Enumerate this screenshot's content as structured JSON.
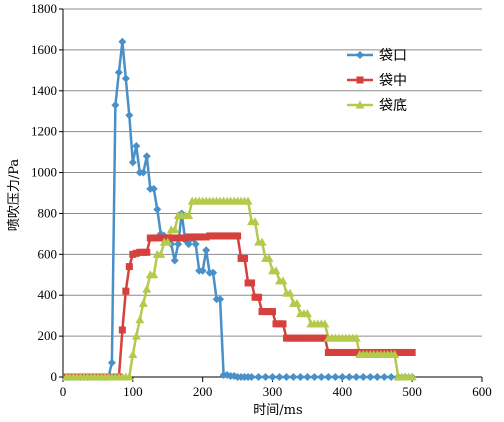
{
  "chart_data": {
    "type": "line",
    "title": "",
    "xlabel": "时间/ms",
    "ylabel": "喷吹压力/Pa",
    "xlim": [
      0,
      600
    ],
    "ylim": [
      0,
      1800
    ],
    "xticks": [
      "0",
      "100",
      "200",
      "300",
      "400",
      "500",
      "600"
    ],
    "yticks": [
      "0",
      "200",
      "400",
      "600",
      "800",
      "1000",
      "1200",
      "1400",
      "1600",
      "1800"
    ],
    "grid": "horizontal",
    "legend_position": "right",
    "series": [
      {
        "name": "袋口",
        "color": "#4a90c8",
        "marker": "diamond",
        "x": [
          5,
          10,
          15,
          20,
          25,
          30,
          35,
          40,
          45,
          50,
          55,
          60,
          65,
          70,
          75,
          80,
          85,
          90,
          95,
          100,
          105,
          110,
          115,
          120,
          125,
          130,
          135,
          140,
          145,
          150,
          155,
          160,
          165,
          170,
          175,
          180,
          185,
          190,
          195,
          200,
          205,
          210,
          215,
          220,
          225,
          230,
          235,
          240,
          245,
          250,
          255,
          260,
          265,
          270,
          280,
          290,
          300,
          310,
          320,
          330,
          340,
          350,
          360,
          370,
          380,
          390,
          400,
          410,
          420,
          430,
          440,
          450,
          460,
          470,
          480,
          490,
          500
        ],
        "y": [
          0,
          0,
          0,
          0,
          0,
          0,
          0,
          0,
          0,
          0,
          0,
          0,
          0,
          70,
          1330,
          1490,
          1640,
          1460,
          1280,
          1050,
          1130,
          1000,
          1000,
          1080,
          920,
          920,
          820,
          700,
          690,
          680,
          650,
          570,
          650,
          800,
          670,
          650,
          680,
          650,
          520,
          520,
          620,
          510,
          510,
          380,
          380,
          10,
          10,
          5,
          5,
          0,
          0,
          0,
          0,
          0,
          0,
          0,
          0,
          0,
          0,
          0,
          0,
          0,
          0,
          0,
          0,
          0,
          0,
          0,
          0,
          0,
          0,
          0,
          0,
          0,
          0,
          0,
          0
        ]
      },
      {
        "name": "袋中",
        "color": "#d6413d",
        "marker": "square",
        "x": [
          5,
          10,
          15,
          20,
          25,
          30,
          35,
          40,
          45,
          50,
          55,
          60,
          65,
          70,
          75,
          80,
          85,
          90,
          95,
          100,
          105,
          110,
          115,
          120,
          125,
          130,
          135,
          140,
          145,
          150,
          155,
          160,
          165,
          170,
          175,
          180,
          185,
          190,
          195,
          200,
          205,
          210,
          215,
          220,
          225,
          230,
          235,
          240,
          245,
          250,
          255,
          260,
          265,
          270,
          275,
          280,
          285,
          290,
          295,
          300,
          305,
          310,
          315,
          320,
          325,
          330,
          335,
          340,
          345,
          350,
          355,
          360,
          365,
          370,
          375,
          380,
          385,
          390,
          395,
          400,
          405,
          410,
          415,
          420,
          425,
          430,
          435,
          440,
          445,
          450,
          455,
          460,
          465,
          470,
          475,
          480,
          485,
          490,
          495,
          500
        ],
        "y": [
          0,
          0,
          0,
          0,
          0,
          0,
          0,
          0,
          0,
          0,
          0,
          0,
          0,
          0,
          0,
          0,
          230,
          420,
          540,
          600,
          605,
          610,
          610,
          610,
          680,
          680,
          680,
          680,
          680,
          680,
          680,
          680,
          680,
          680,
          680,
          685,
          685,
          685,
          685,
          685,
          685,
          690,
          690,
          690,
          690,
          690,
          690,
          690,
          690,
          690,
          580,
          580,
          460,
          460,
          390,
          390,
          320,
          320,
          320,
          320,
          260,
          260,
          260,
          190,
          190,
          190,
          190,
          190,
          190,
          190,
          190,
          190,
          190,
          190,
          190,
          120,
          120,
          120,
          120,
          120,
          120,
          120,
          120,
          120,
          120,
          120,
          120,
          120,
          120,
          120,
          120,
          120,
          120,
          120,
          120,
          120,
          120,
          120,
          120,
          120
        ]
      },
      {
        "name": "袋底",
        "color": "#b5c94a",
        "marker": "triangle",
        "x": [
          5,
          10,
          15,
          20,
          25,
          30,
          35,
          40,
          45,
          50,
          55,
          60,
          65,
          70,
          75,
          80,
          85,
          90,
          95,
          100,
          105,
          110,
          115,
          120,
          125,
          130,
          135,
          140,
          145,
          150,
          155,
          160,
          165,
          170,
          175,
          180,
          185,
          190,
          195,
          200,
          205,
          210,
          215,
          220,
          225,
          230,
          235,
          240,
          245,
          250,
          255,
          260,
          265,
          270,
          275,
          280,
          285,
          290,
          295,
          300,
          305,
          310,
          315,
          320,
          325,
          330,
          335,
          340,
          345,
          350,
          355,
          360,
          365,
          370,
          375,
          380,
          385,
          390,
          395,
          400,
          405,
          410,
          415,
          420,
          425,
          430,
          435,
          440,
          445,
          450,
          455,
          460,
          465,
          470,
          475,
          480,
          485,
          490,
          495,
          500
        ],
        "y": [
          0,
          0,
          0,
          0,
          0,
          0,
          0,
          0,
          0,
          0,
          0,
          0,
          0,
          0,
          0,
          0,
          0,
          0,
          0,
          110,
          200,
          280,
          360,
          430,
          500,
          500,
          600,
          600,
          660,
          660,
          720,
          720,
          790,
          790,
          790,
          790,
          860,
          860,
          860,
          860,
          860,
          860,
          860,
          860,
          860,
          860,
          860,
          860,
          860,
          860,
          860,
          860,
          860,
          760,
          760,
          660,
          660,
          580,
          580,
          520,
          520,
          470,
          470,
          410,
          410,
          360,
          360,
          310,
          310,
          310,
          260,
          260,
          260,
          260,
          260,
          190,
          190,
          190,
          190,
          190,
          190,
          190,
          190,
          190,
          110,
          110,
          110,
          110,
          110,
          110,
          110,
          110,
          110,
          110,
          110,
          0,
          0,
          0,
          0,
          0
        ]
      }
    ]
  }
}
